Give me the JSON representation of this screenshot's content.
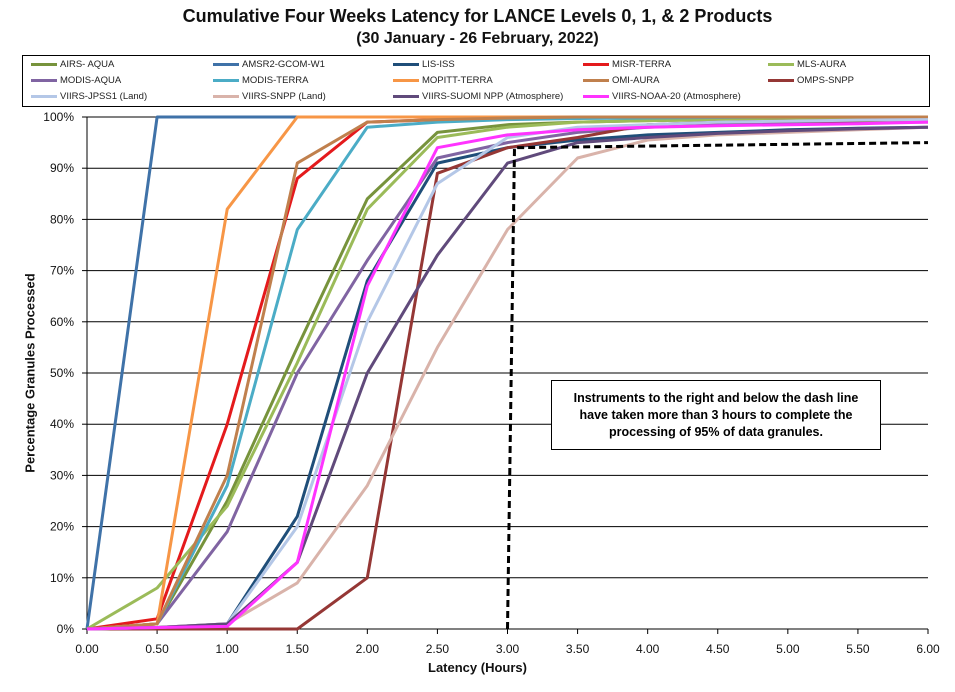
{
  "chart_data": {
    "type": "line",
    "title": "Cumulative Four Weeks Latency  for LANCE Levels 0, 1, & 2 Products",
    "subtitle": "(30  January   -  26  February,  2022)",
    "xlabel": "Latency (Hours)",
    "ylabel": "Percentage Granules Processed",
    "xlim": [
      0,
      6
    ],
    "ylim": [
      0,
      100
    ],
    "x_ticks": [
      "0.00",
      "0.50",
      "1.00",
      "1.50",
      "2.00",
      "2.50",
      "3.00",
      "3.50",
      "4.00",
      "4.50",
      "5.00",
      "5.50",
      "6.00"
    ],
    "y_ticks": [
      "0%",
      "10%",
      "20%",
      "30%",
      "40%",
      "50%",
      "60%",
      "70%",
      "80%",
      "90%",
      "100%"
    ],
    "grid": "horizontal",
    "legend_position": "top",
    "x": [
      0,
      0.5,
      1.0,
      1.5,
      2.0,
      2.5,
      3.0,
      3.5,
      4.0,
      4.5,
      5.0,
      5.5,
      6.0
    ],
    "series": [
      {
        "name": "AIRS- AQUA",
        "color": "#77933c",
        "values": [
          0,
          1,
          25,
          55,
          84,
          97,
          98.5,
          99,
          99.3,
          99.5,
          99.6,
          99.7,
          99.8
        ]
      },
      {
        "name": "AMSR2-GCOM-W1",
        "color": "#3f72a8",
        "values": [
          0,
          100,
          100,
          100,
          100,
          100,
          100,
          100,
          100,
          100,
          100,
          100,
          100
        ]
      },
      {
        "name": "LIS-ISS",
        "color": "#1f4e79",
        "values": [
          0,
          0.3,
          1,
          22,
          68,
          91,
          94,
          95.5,
          96.5,
          97,
          97.5,
          97.8,
          98
        ]
      },
      {
        "name": "MISR-TERRA",
        "color": "#e41a1c",
        "values": [
          0,
          2,
          40,
          88,
          99,
          99.5,
          99.7,
          99.8,
          99.9,
          100,
          100,
          100,
          100
        ]
      },
      {
        "name": "MLS-AURA",
        "color": "#9bbb59",
        "values": [
          0,
          8,
          24,
          52,
          82,
          96,
          98,
          99,
          99.3,
          99.5,
          99.6,
          99.7,
          99.8
        ]
      },
      {
        "name": "MODIS-AQUA",
        "color": "#8064a2",
        "values": [
          0,
          1,
          19,
          50,
          72,
          92,
          95,
          97,
          98,
          98.5,
          99,
          99,
          99
        ]
      },
      {
        "name": "MODIS-TERRA",
        "color": "#4bacc6",
        "values": [
          0,
          1,
          28,
          78,
          98,
          99,
          99.5,
          99.7,
          99.8,
          99.9,
          100,
          100,
          100
        ]
      },
      {
        "name": "MOPITT-TERRA",
        "color": "#f79646",
        "values": [
          0,
          1,
          82,
          100,
          100,
          100,
          100,
          100,
          100,
          100,
          100,
          100,
          100
        ]
      },
      {
        "name": "OMI-AURA",
        "color": "#c0804d",
        "values": [
          0,
          1,
          30,
          91,
          99,
          99.5,
          99.8,
          100,
          100,
          100,
          100,
          100,
          100
        ]
      },
      {
        "name": "OMPS-SNPP",
        "color": "#953735",
        "values": [
          0,
          0,
          0,
          0,
          10,
          89,
          94,
          96,
          98.5,
          99,
          99.2,
          99.3,
          99.4
        ]
      },
      {
        "name": "VIIRS-JPSS1 (Land)",
        "color": "#b4c7e7",
        "values": [
          0,
          0.3,
          1,
          20,
          60,
          87,
          96,
          98,
          98.5,
          99,
          99.2,
          99.4,
          99.5
        ]
      },
      {
        "name": "VIIRS-SNPP (Land)",
        "color": "#d9b3aa",
        "values": [
          0,
          0.3,
          1,
          9,
          28,
          55,
          78,
          92,
          95.5,
          96.5,
          97,
          97.5,
          98
        ]
      },
      {
        "name": "VIIRS-SUOMI NPP (Atmosphere)",
        "color": "#604a7b",
        "values": [
          0,
          0.3,
          1,
          13,
          50,
          73,
          91,
          95,
          96,
          96.8,
          97.3,
          97.7,
          98
        ]
      },
      {
        "name": "VIIRS-NOAA-20 (Atmosphere)",
        "color": "#ff33ff",
        "values": [
          0,
          0.3,
          0.5,
          13,
          67,
          94,
          96.5,
          97.5,
          98,
          98.3,
          98.5,
          98.7,
          99
        ]
      }
    ],
    "reference_line": {
      "style": "dashed",
      "color": "#000000",
      "x": [
        3.0,
        3.05,
        6.0
      ],
      "y": [
        0,
        94,
        95
      ]
    },
    "annotation": "Instruments to the right and below the dash line have taken more than 3 hours to complete the processing of 95% of data granules."
  }
}
